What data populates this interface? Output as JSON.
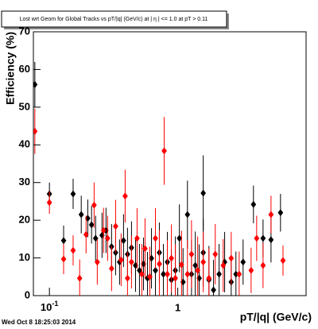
{
  "chart_data": {
    "type": "scatter",
    "title": "Lost wrt Geom for Global Tracks vs pT/|q| (GeV/c) at |  η | <= 1.0 at pT > 0.11",
    "x_label": "pT/|q| (GeV/c)",
    "y_label": "Efficiency (%)",
    "footer": "Wed Oct  8 18:25:03 2014",
    "xscale": "log",
    "xlim": [
      0.075,
      10
    ],
    "ylim": [
      0,
      70
    ],
    "xticks": [
      {
        "value": 0.1,
        "label": "10",
        "exponent": "-1"
      },
      1
    ],
    "yticks": [
      0,
      10,
      20,
      30,
      40,
      50,
      60,
      70
    ],
    "series": [
      {
        "color": "#000000",
        "x": [
          0.077,
          0.1,
          0.129,
          0.153,
          0.177,
          0.199,
          0.213,
          0.229,
          0.257,
          0.276,
          0.305,
          0.328,
          0.352,
          0.378,
          0.406,
          0.436,
          0.469,
          0.503,
          0.541,
          0.581,
          0.624,
          0.67,
          0.719,
          0.773,
          0.83,
          0.892,
          0.958,
          1.03,
          1.1,
          1.19,
          1.28,
          1.37,
          1.47,
          1.58,
          1.58,
          1.75,
          1.9,
          2.1,
          2.32,
          2.61,
          2.84,
          3.23,
          3.89,
          4.62,
          5.33,
          6.32
        ],
        "values": [
          56,
          27,
          14.6,
          27,
          21.5,
          20.5,
          18.8,
          15.2,
          16,
          17.3,
          13,
          11.4,
          8.9,
          14.6,
          11,
          12.7,
          8,
          6.7,
          8.4,
          4.6,
          9.9,
          6.7,
          11.4,
          5.7,
          8.9,
          4.2,
          6.7,
          15.2,
          3.6,
          21.5,
          5.7,
          8,
          4.6,
          11.4,
          27.2,
          4.2,
          1.5,
          5.7,
          8.9,
          3.6,
          5.7,
          8.9,
          24.2,
          15.2,
          14.8,
          22
        ],
        "errors": [
          6,
          3,
          4,
          4,
          5,
          5,
          5,
          6,
          6,
          6,
          6,
          6,
          6,
          7,
          7,
          7,
          7,
          7,
          7,
          7,
          8,
          8,
          8,
          8,
          8,
          8,
          9,
          9,
          9,
          9,
          9,
          9,
          9,
          9,
          10,
          9,
          8,
          8,
          8,
          6,
          6,
          6,
          5,
          5,
          6,
          5
        ]
      },
      {
        "color": "#ff0000",
        "x": [
          0.077,
          0.1,
          0.129,
          0.153,
          0.172,
          0.193,
          0.223,
          0.236,
          0.264,
          0.284,
          0.305,
          0.328,
          0.362,
          0.389,
          0.406,
          0.436,
          0.482,
          0.525,
          0.556,
          0.606,
          0.67,
          0.719,
          0.784,
          0.83,
          0.892,
          0.958,
          1.07,
          1.19,
          1.28,
          1.43,
          1.58,
          1.75,
          1.96,
          2.26,
          2.61,
          3.01,
          3.73,
          4.12,
          4.62,
          5.33,
          6.61
        ],
        "values": [
          43.6,
          24.7,
          9.7,
          12,
          4.6,
          16.2,
          24,
          8.9,
          17.3,
          15.2,
          7.2,
          18.4,
          9.5,
          26.4,
          4.6,
          8.9,
          15.2,
          5.7,
          12.5,
          5,
          15.2,
          8.4,
          38.4,
          5.7,
          9.9,
          4.6,
          8.2,
          5.7,
          11,
          6.7,
          8.9,
          4.6,
          11,
          8,
          9.9,
          5.7,
          6.7,
          15.2,
          8,
          21.5,
          9.3
        ],
        "errors": [
          6,
          3,
          4,
          4,
          5,
          5,
          6,
          6,
          6,
          6,
          6,
          7,
          7,
          7,
          7,
          7,
          8,
          8,
          8,
          8,
          8,
          9,
          9,
          9,
          9,
          9,
          9,
          9,
          9,
          9,
          8,
          8,
          8,
          7,
          7,
          6,
          6,
          6,
          6,
          5,
          4
        ]
      }
    ]
  }
}
